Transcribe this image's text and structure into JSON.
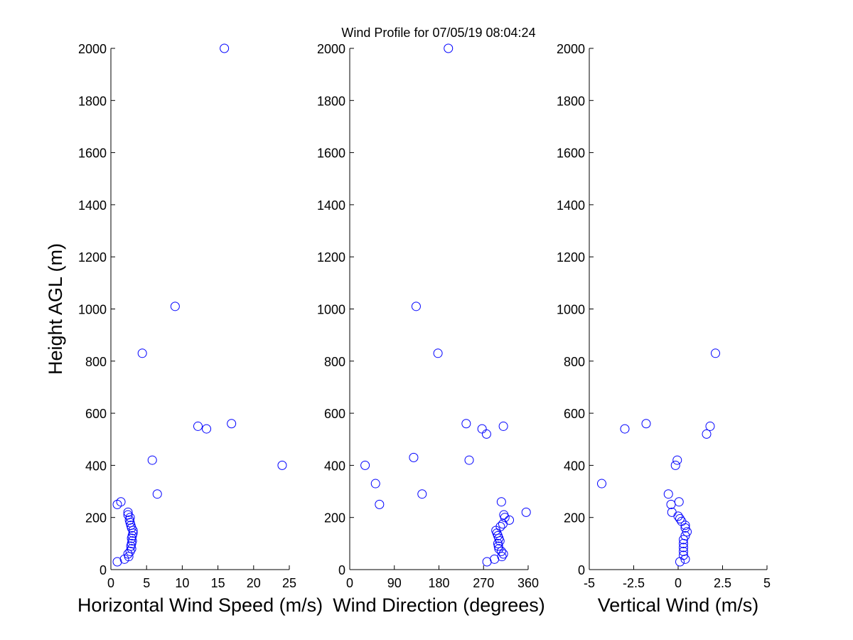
{
  "title": "Wind Profile for  07/05/19 08:04:24",
  "marker_color": "#0000ff",
  "chart_data": [
    {
      "type": "scatter",
      "xlabel": "Horizontal Wind Speed (m/s)",
      "ylabel": "Height AGL (m)",
      "xlim": [
        0,
        25
      ],
      "ylim": [
        0,
        2000
      ],
      "xticks": [
        0,
        5,
        10,
        15,
        20,
        25
      ],
      "xtick_labels": [
        "0",
        "5",
        "10",
        "15",
        "20",
        "25"
      ],
      "yticks": [
        0,
        200,
        400,
        600,
        800,
        1000,
        1200,
        1400,
        1600,
        1800,
        2000
      ],
      "ytick_labels": [
        "0",
        "200",
        "400",
        "600",
        "800",
        "1000",
        "1200",
        "1400",
        "1600",
        "1800",
        "2000"
      ],
      "points": [
        [
          0.9,
          30
        ],
        [
          1.9,
          40
        ],
        [
          2.5,
          50
        ],
        [
          2.4,
          60
        ],
        [
          2.7,
          70
        ],
        [
          2.9,
          80
        ],
        [
          2.8,
          90
        ],
        [
          2.9,
          100
        ],
        [
          3.0,
          110
        ],
        [
          2.9,
          120
        ],
        [
          3.0,
          130
        ],
        [
          3.1,
          140
        ],
        [
          3.1,
          150
        ],
        [
          2.9,
          160
        ],
        [
          2.8,
          170
        ],
        [
          2.7,
          180
        ],
        [
          2.6,
          190
        ],
        [
          2.7,
          200
        ],
        [
          2.4,
          210
        ],
        [
          2.4,
          220
        ],
        [
          0.9,
          250
        ],
        [
          1.4,
          260
        ],
        [
          6.5,
          290
        ],
        [
          24.0,
          400
        ],
        [
          5.8,
          420
        ],
        [
          13.4,
          540
        ],
        [
          12.2,
          550
        ],
        [
          16.9,
          560
        ],
        [
          4.4,
          830
        ],
        [
          9.0,
          1010
        ],
        [
          15.9,
          2000
        ]
      ]
    },
    {
      "type": "scatter",
      "xlabel": "Wind Direction (degrees)",
      "ylabel": "",
      "xlim": [
        0,
        360
      ],
      "ylim": [
        0,
        2000
      ],
      "xticks": [
        0,
        90,
        180,
        270,
        360
      ],
      "xtick_labels": [
        "0",
        "90",
        "180",
        "270",
        "360"
      ],
      "yticks": [
        0,
        200,
        400,
        600,
        800,
        1000,
        1200,
        1400,
        1600,
        1800,
        2000
      ],
      "ytick_labels": [
        "0",
        "200",
        "400",
        "600",
        "800",
        "1000",
        "1200",
        "1400",
        "1600",
        "1800",
        "2000"
      ],
      "points": [
        [
          277,
          30
        ],
        [
          292,
          40
        ],
        [
          307,
          50
        ],
        [
          310,
          60
        ],
        [
          306,
          70
        ],
        [
          301,
          80
        ],
        [
          300,
          90
        ],
        [
          299,
          100
        ],
        [
          303,
          110
        ],
        [
          301,
          120
        ],
        [
          299,
          130
        ],
        [
          297,
          140
        ],
        [
          295,
          150
        ],
        [
          304,
          165
        ],
        [
          309,
          175
        ],
        [
          322,
          190
        ],
        [
          313,
          200
        ],
        [
          311,
          210
        ],
        [
          356,
          220
        ],
        [
          306,
          260
        ],
        [
          60,
          250
        ],
        [
          146,
          290
        ],
        [
          52,
          330
        ],
        [
          31,
          400
        ],
        [
          129,
          430
        ],
        [
          241,
          420
        ],
        [
          267,
          540
        ],
        [
          310,
          550
        ],
        [
          235,
          560
        ],
        [
          276,
          520
        ],
        [
          178,
          830
        ],
        [
          134,
          1010
        ],
        [
          199,
          2000
        ]
      ]
    },
    {
      "type": "scatter",
      "xlabel": "Vertical Wind (m/s)",
      "ylabel": "",
      "xlim": [
        -5,
        5
      ],
      "ylim": [
        0,
        2000
      ],
      "xticks": [
        -5,
        -2.5,
        0,
        2.5,
        5
      ],
      "xtick_labels": [
        "-5",
        "-2.5",
        "0",
        "2.5",
        "5"
      ],
      "yticks": [
        0,
        200,
        400,
        600,
        800,
        1000,
        1200,
        1400,
        1600,
        1800,
        2000
      ],
      "ytick_labels": [
        "0",
        "200",
        "400",
        "600",
        "800",
        "1000",
        "1200",
        "1400",
        "1600",
        "1800",
        "2000"
      ],
      "points": [
        [
          0.1,
          30
        ],
        [
          0.4,
          40
        ],
        [
          0.3,
          55
        ],
        [
          0.3,
          70
        ],
        [
          0.3,
          85
        ],
        [
          0.3,
          100
        ],
        [
          0.3,
          115
        ],
        [
          0.4,
          130
        ],
        [
          0.5,
          145
        ],
        [
          0.4,
          160
        ],
        [
          0.4,
          170
        ],
        [
          0.2,
          185
        ],
        [
          0.1,
          195
        ],
        [
          0.0,
          205
        ],
        [
          -0.35,
          220
        ],
        [
          -0.4,
          250
        ],
        [
          0.05,
          260
        ],
        [
          -0.55,
          290
        ],
        [
          -4.3,
          330
        ],
        [
          -0.15,
          400
        ],
        [
          -0.05,
          420
        ],
        [
          -3.0,
          540
        ],
        [
          1.8,
          550
        ],
        [
          -1.8,
          560
        ],
        [
          1.6,
          520
        ],
        [
          2.1,
          830
        ]
      ]
    }
  ]
}
